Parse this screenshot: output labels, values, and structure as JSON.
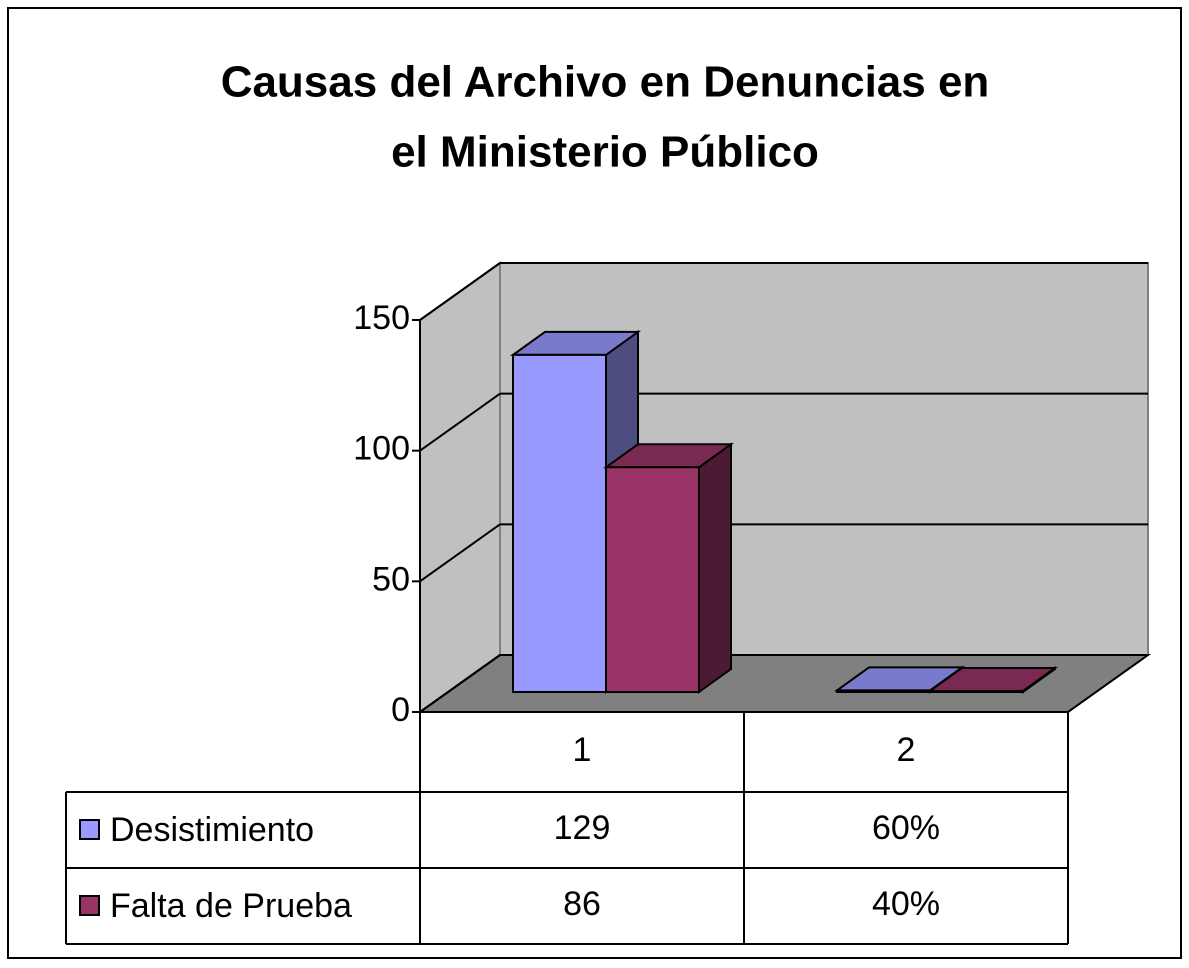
{
  "chart_data": {
    "type": "bar3d",
    "title": [
      "Causas del Archivo en Denuncias en",
      "el Ministerio Público"
    ],
    "categories": [
      "1",
      "2"
    ],
    "series": [
      {
        "name": "Desistimiento",
        "color": "#9999ff",
        "values": [
          129,
          0.6
        ],
        "value_labels": [
          "129",
          "60%"
        ]
      },
      {
        "name": "Falta de Prueba",
        "color": "#993366",
        "values": [
          86,
          0.4
        ],
        "value_labels": [
          "86",
          "40%"
        ]
      }
    ],
    "ylim": [
      0,
      150
    ],
    "yticks": [
      0,
      50,
      100,
      150
    ],
    "grid": true
  }
}
